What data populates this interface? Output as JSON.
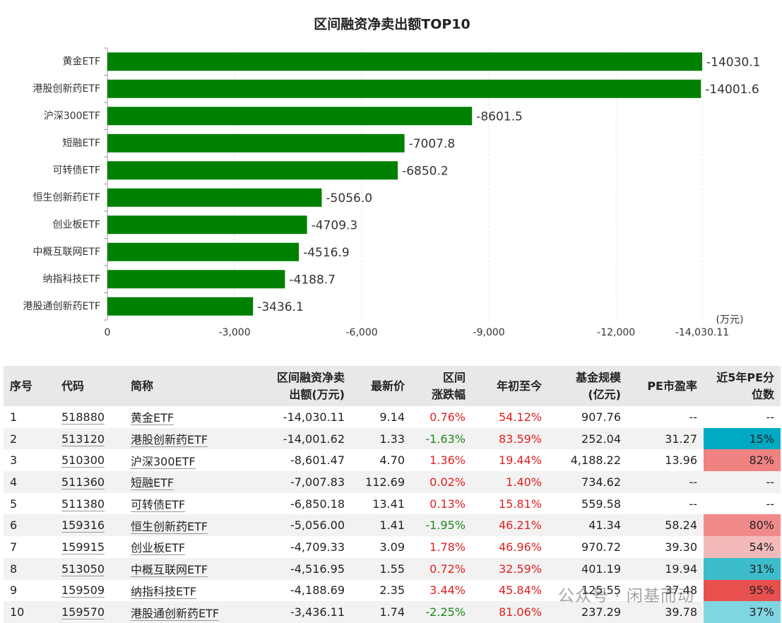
{
  "chart_data": {
    "type": "bar",
    "orientation": "horizontal",
    "title": "区间融资净卖出额TOP10",
    "categories": [
      "黄金ETF",
      "港股创新药ETF",
      "沪深300ETF",
      "短融ETF",
      "可转债ETF",
      "恒生创新药ETF",
      "创业板ETF",
      "中概互联网ETF",
      "纳指科技ETF",
      "港股通创新药ETF"
    ],
    "values": [
      -14030.11,
      -14001.62,
      -8601.47,
      -7007.83,
      -6850.18,
      -5056.0,
      -4709.33,
      -4516.95,
      -4188.69,
      -3436.11
    ],
    "value_labels": [
      "-14030.1",
      "-14001.6",
      "-8601.5",
      "-7007.8",
      "-6850.2",
      "-5056.0",
      "-4709.3",
      "-4516.9",
      "-4188.7",
      "-3436.1"
    ],
    "color": "#008000",
    "xlim": [
      0,
      -14030.11
    ],
    "xticks": [
      0,
      {
        "value": -3000,
        "label": "-3,000"
      },
      {
        "value": -6000,
        "label": "-6,000"
      },
      {
        "value": -9000,
        "label": "-9,000"
      },
      {
        "value": -12000,
        "label": "-12,000"
      },
      {
        "value": -14030.11,
        "label": "-14,030.11"
      }
    ],
    "x_unit": "(万元)",
    "grid": true
  },
  "table": {
    "header": [
      [
        "序号"
      ],
      [
        "代码"
      ],
      [
        "简称"
      ],
      [
        "区间融资净卖",
        "出额(万元)"
      ],
      [
        "最新价"
      ],
      [
        "区间",
        "涨跌幅"
      ],
      [
        "年初至今"
      ],
      [
        "基金规模",
        "(亿元)"
      ],
      [
        "PE市盈率"
      ],
      [
        "近5年PE分",
        "位数"
      ]
    ],
    "rows": [
      [
        "1",
        "518880",
        "黄金ETF",
        "-14,030.11",
        "9.14",
        "0.76%",
        "54.12%",
        "907.76",
        "--",
        "--"
      ],
      [
        "2",
        "513120",
        "港股创新药ETF",
        "-14,001.62",
        "1.33",
        "-1.63%",
        "83.59%",
        "252.04",
        "31.27",
        "15%"
      ],
      [
        "3",
        "510300",
        "沪深300ETF",
        "-8,601.47",
        "4.70",
        "1.36%",
        "19.44%",
        "4,188.22",
        "13.96",
        "82%"
      ],
      [
        "4",
        "511360",
        "短融ETF",
        "-7,007.83",
        "112.69",
        "0.02%",
        "1.40%",
        "734.62",
        "--",
        "--"
      ],
      [
        "5",
        "511380",
        "可转债ETF",
        "-6,850.18",
        "13.41",
        "0.13%",
        "15.81%",
        "559.58",
        "--",
        "--"
      ],
      [
        "6",
        "159316",
        "恒生创新药ETF",
        "-5,056.00",
        "1.41",
        "-1.95%",
        "46.21%",
        "41.34",
        "58.24",
        "80%"
      ],
      [
        "7",
        "159915",
        "创业板ETF",
        "-4,709.33",
        "3.09",
        "1.78%",
        "46.96%",
        "970.72",
        "39.30",
        "54%"
      ],
      [
        "8",
        "513050",
        "中概互联网ETF",
        "-4,516.95",
        "1.55",
        "0.72%",
        "32.59%",
        "401.19",
        "19.94",
        "31%"
      ],
      [
        "9",
        "159509",
        "纳指科技ETF",
        "-4,188.69",
        "2.35",
        "3.44%",
        "45.84%",
        "125.55",
        "37.48",
        "95%"
      ],
      [
        "10",
        "159570",
        "港股通创新药ETF",
        "-3,436.11",
        "1.74",
        "-2.25%",
        "81.06%",
        "237.29",
        "39.78",
        "37%"
      ]
    ],
    "pe_pct_colors": [
      null,
      "#00a9c2",
      "#f08282",
      null,
      null,
      "#f08a8a",
      "#f4baba",
      "#3dbdcc",
      "#e85050",
      "#7fd6e2"
    ]
  },
  "watermark": "公众号 · 闲基而动"
}
